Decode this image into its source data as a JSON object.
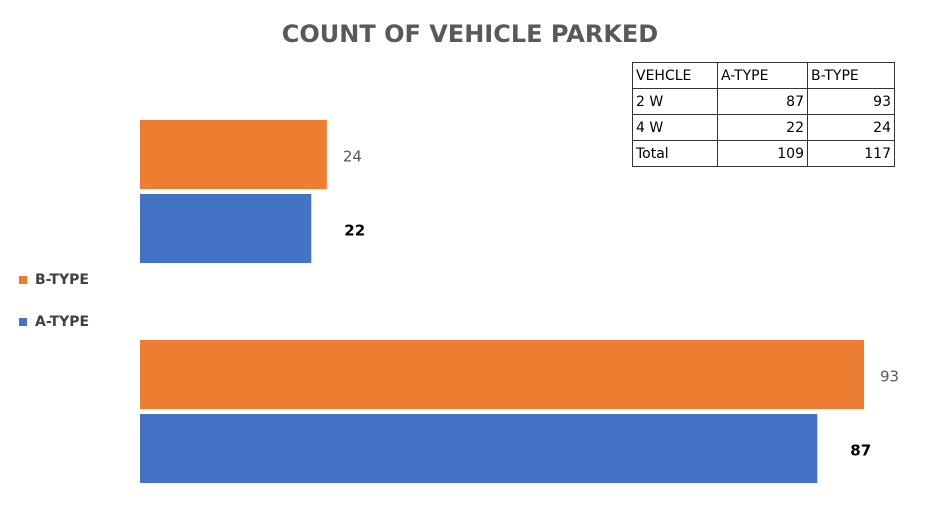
{
  "chart_data": {
    "type": "hbar",
    "title": "COUNT OF VEHICLE PARKED",
    "series": [
      {
        "name": "B-TYPE",
        "color": "#ed7d31",
        "values": [
          24,
          93
        ],
        "label_weight": "normal"
      },
      {
        "name": "A-TYPE",
        "color": "#4472c4",
        "values": [
          22,
          87
        ],
        "label_weight": "bold"
      }
    ],
    "legend": "left"
  },
  "table": {
    "header": [
      "VEHCLE",
      "A-TYPE",
      "B-TYPE"
    ],
    "rows": [
      [
        "2 W",
        87,
        93
      ],
      [
        "4 W",
        22,
        24
      ],
      [
        "Total",
        109,
        117
      ]
    ]
  }
}
